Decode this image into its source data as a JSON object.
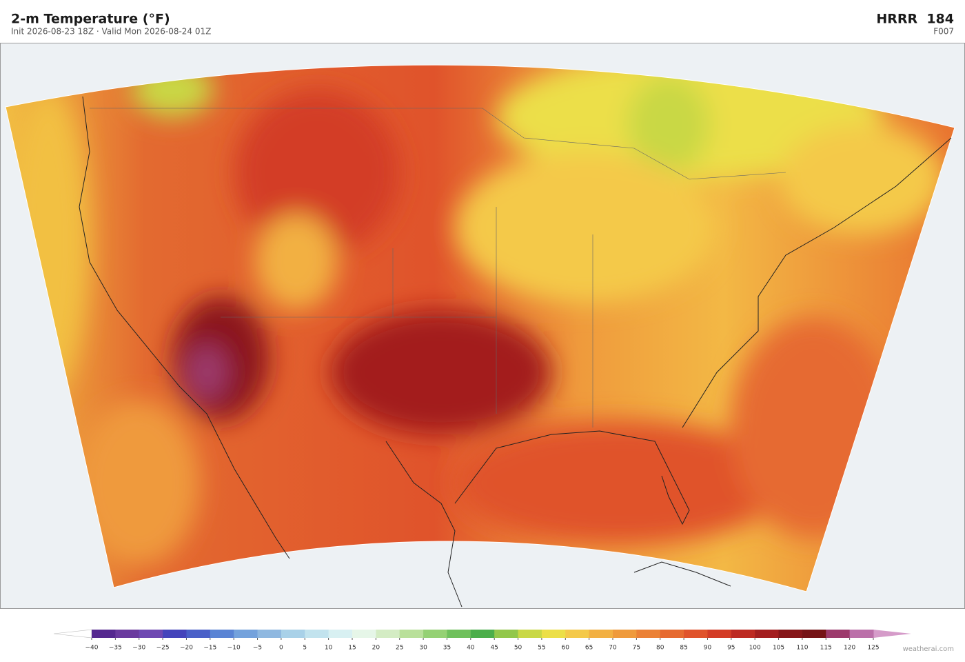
{
  "header": {
    "title": "2-m Temperature  (°F)",
    "subtitle": "Init 2026-08-23 18Z  ·  Valid Mon 2026-08-24 01Z",
    "model": "HRRR  184",
    "forecast_hour": "F007"
  },
  "colorbar": {
    "ticks": [
      {
        "value": -40,
        "label": "−40"
      },
      {
        "value": -35,
        "label": "−35"
      },
      {
        "value": -30,
        "label": "−30"
      },
      {
        "value": -25,
        "label": "−25"
      },
      {
        "value": -20,
        "label": "−20"
      },
      {
        "value": -15,
        "label": "−15"
      },
      {
        "value": -10,
        "label": "−10"
      },
      {
        "value": -5,
        "label": "−5"
      },
      0,
      5,
      10,
      15,
      20,
      25,
      30,
      35,
      40,
      45,
      50,
      55,
      60,
      65,
      70,
      75,
      80,
      85,
      90,
      95,
      100,
      105,
      110,
      115,
      120,
      125
    ],
    "colors": [
      "#55288f",
      "#6a3a9e",
      "#6e48b2",
      "#4444bb",
      "#4a60c8",
      "#5a84d4",
      "#74a2dc",
      "#8fb8e0",
      "#a9d1e8",
      "#c2e3ee",
      "#d8f0f2",
      "#e6f6e8",
      "#d4ecc4",
      "#b9e09a",
      "#95d174",
      "#6fc05c",
      "#4bae4a",
      "#92c74a",
      "#c9d845",
      "#ecdf48",
      "#f4c94a",
      "#f2b043",
      "#ef9a3c",
      "#eb8136",
      "#e66a30",
      "#e0532b",
      "#d33c26",
      "#bd2a22",
      "#a31e1f",
      "#861619",
      "#751316",
      "#9c3a6c",
      "#bb6fa9"
    ],
    "under_color": "#ffffff",
    "over_color": "#d59bc9"
  },
  "credit": "weatherai.com"
}
